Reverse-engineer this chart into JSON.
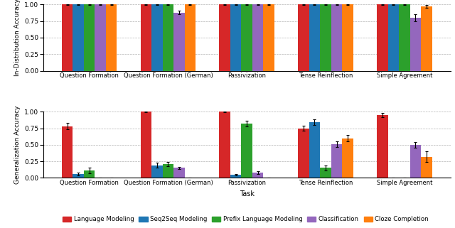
{
  "colors": [
    "#d62728",
    "#1f77b4",
    "#2ca02c",
    "#9467bd",
    "#ff7f0e"
  ],
  "legend_labels": [
    "Language Modeling",
    "Seq2Seq Modeling",
    "Prefix Language Modeling",
    "Classification",
    "Cloze Completion"
  ],
  "top_values": [
    [
      1.0,
      1.0,
      1.0,
      1.0,
      1.0
    ],
    [
      1.0,
      1.0,
      1.0,
      1.0,
      1.0
    ],
    [
      1.0,
      1.0,
      1.0,
      1.0,
      1.0
    ],
    [
      1.0,
      0.88,
      1.0,
      1.0,
      0.8
    ],
    [
      1.0,
      1.0,
      1.0,
      1.0,
      0.97
    ]
  ],
  "top_errors": [
    [
      0.003,
      0.003,
      0.003,
      0.003,
      0.003
    ],
    [
      0.003,
      0.003,
      0.003,
      0.003,
      0.003
    ],
    [
      0.003,
      0.003,
      0.003,
      0.003,
      0.003
    ],
    [
      0.003,
      0.03,
      0.003,
      0.003,
      0.05
    ],
    [
      0.003,
      0.003,
      0.003,
      0.003,
      0.02
    ]
  ],
  "bottom_values": [
    [
      0.78,
      1.0,
      1.0,
      0.75,
      0.95
    ],
    [
      0.06,
      0.19,
      0.05,
      0.84,
      0.0
    ],
    [
      0.11,
      0.21,
      0.82,
      0.15,
      0.0
    ],
    [
      0.0,
      0.15,
      0.08,
      0.51,
      0.5
    ],
    [
      0.0,
      0.0,
      0.0,
      0.6,
      0.32
    ]
  ],
  "bottom_errors": [
    [
      0.05,
      0.005,
      0.005,
      0.04,
      0.03
    ],
    [
      0.02,
      0.04,
      0.01,
      0.04,
      0.005
    ],
    [
      0.04,
      0.03,
      0.04,
      0.04,
      0.005
    ],
    [
      0.005,
      0.02,
      0.02,
      0.04,
      0.04
    ],
    [
      0.005,
      0.005,
      0.005,
      0.05,
      0.08
    ]
  ],
  "top_xticks": [
    "Question Formation",
    "Question Formation (German)",
    "Passivization",
    "Tense Reinflection",
    "Simple Agreement"
  ],
  "bottom_xticks": [
    "Question Formation",
    "Question Formation (German)",
    "Passivization",
    "Tense Reinflection",
    "Simple Agreement"
  ],
  "top_ylabel": "In-Distribution Accuracy",
  "bottom_ylabel": "Generalization Accuracy",
  "bottom_xlabel": "Task",
  "ylim": [
    0.0,
    1.0
  ],
  "yticks": [
    0.0,
    0.25,
    0.5,
    0.75,
    1.0
  ]
}
